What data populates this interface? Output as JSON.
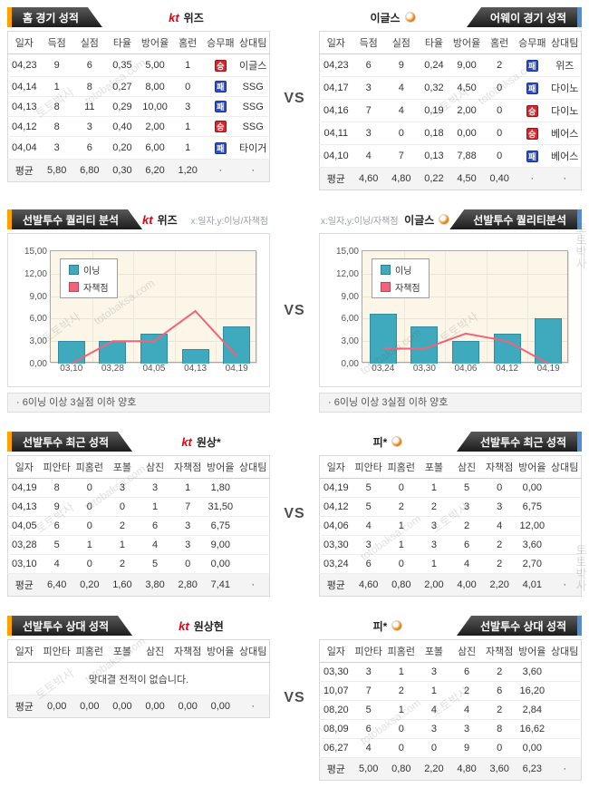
{
  "page": {
    "vs": "VS"
  },
  "watermark": {
    "kr": "토토박사",
    "en": "totobaksa.com"
  },
  "sections": {
    "s1": {
      "left": {
        "title": "홈 경기 성적",
        "team_logo": "kt",
        "team": "위즈",
        "columns": [
          "일자",
          "득점",
          "실점",
          "타율",
          "방어율",
          "홈런",
          "승무패",
          "상대팀"
        ],
        "badge_col": 6,
        "rows": [
          [
            "04,23",
            "9",
            "6",
            "0,35",
            "5,00",
            "1",
            "승",
            "이글스"
          ],
          [
            "04,14",
            "1",
            "8",
            "0,27",
            "8,00",
            "0",
            "패",
            "SSG"
          ],
          [
            "04,13",
            "8",
            "11",
            "0,29",
            "10,00",
            "3",
            "패",
            "SSG"
          ],
          [
            "04,12",
            "8",
            "3",
            "0,40",
            "2,00",
            "1",
            "승",
            "SSG"
          ],
          [
            "04,04",
            "3",
            "6",
            "0,20",
            "6,00",
            "1",
            "패",
            "타이거"
          ]
        ],
        "avg": [
          "평균",
          "5,80",
          "6,80",
          "0,30",
          "6,20",
          "1,20",
          "·",
          "·"
        ]
      },
      "right": {
        "title": "어웨이 경기 성적",
        "team": "이글스",
        "columns": [
          "일자",
          "득점",
          "실점",
          "타율",
          "방어율",
          "홈런",
          "승무패",
          "상대팀"
        ],
        "badge_col": 6,
        "rows": [
          [
            "04,23",
            "6",
            "9",
            "0,24",
            "9,00",
            "2",
            "패",
            "위즈"
          ],
          [
            "04,17",
            "3",
            "4",
            "0,32",
            "4,50",
            "0",
            "패",
            "다이노"
          ],
          [
            "04,16",
            "7",
            "4",
            "0,19",
            "2,00",
            "0",
            "승",
            "다이노"
          ],
          [
            "04,11",
            "3",
            "0",
            "0,18",
            "0,00",
            "0",
            "승",
            "베어스"
          ],
          [
            "04,10",
            "4",
            "7",
            "0,13",
            "7,88",
            "0",
            "패",
            "베어스"
          ]
        ],
        "avg": [
          "평균",
          "4,60",
          "4,80",
          "0,22",
          "4,50",
          "0,40",
          "·",
          "·"
        ]
      }
    },
    "s2": {
      "left": {
        "title": "선발투수 퀄리티 분석",
        "team_logo": "kt",
        "team": "위즈",
        "axis_note": "x:일자,y:이닝/자책점",
        "note": "·  6이닝 이상 3실점 이하 양호"
      },
      "right": {
        "title": "선발투수 퀄리티분석",
        "team": "이글스",
        "axis_note": "x:일자,y:이닝/자책점",
        "note": "·  6이닝 이상 3실점 이하 양호"
      }
    },
    "s3": {
      "left": {
        "title": "선발투수 최근 성적",
        "team_logo": "kt",
        "team": "원상*",
        "columns": [
          "일자",
          "피안타",
          "피홈런",
          "포볼",
          "삼진",
          "자책점",
          "방어율",
          "상대팀"
        ],
        "rows": [
          [
            "04,19",
            "8",
            "0",
            "3",
            "3",
            "1",
            "1,80",
            ""
          ],
          [
            "04,13",
            "9",
            "0",
            "0",
            "1",
            "7",
            "31,50",
            ""
          ],
          [
            "04,05",
            "6",
            "0",
            "2",
            "6",
            "3",
            "6,75",
            ""
          ],
          [
            "03,28",
            "5",
            "1",
            "1",
            "4",
            "3",
            "9,00",
            ""
          ],
          [
            "03,10",
            "4",
            "0",
            "2",
            "5",
            "0",
            "0,00",
            ""
          ]
        ],
        "avg": [
          "평균",
          "6,40",
          "0,20",
          "1,60",
          "3,80",
          "2,80",
          "7,41",
          "·"
        ]
      },
      "right": {
        "title": "선발투수 최근 성적",
        "team": "피*",
        "columns": [
          "일자",
          "피안타",
          "피홈런",
          "포볼",
          "삼진",
          "자책점",
          "방어율",
          "상대팀"
        ],
        "rows": [
          [
            "04,19",
            "5",
            "0",
            "1",
            "5",
            "0",
            "0,00",
            ""
          ],
          [
            "04,12",
            "5",
            "2",
            "2",
            "3",
            "3",
            "6,75",
            ""
          ],
          [
            "04,06",
            "4",
            "1",
            "3",
            "2",
            "4",
            "12,00",
            ""
          ],
          [
            "03,30",
            "3",
            "1",
            "3",
            "6",
            "2",
            "3,60",
            ""
          ],
          [
            "03,24",
            "6",
            "0",
            "1",
            "4",
            "2",
            "2,70",
            ""
          ]
        ],
        "avg": [
          "평균",
          "4,60",
          "0,80",
          "2,00",
          "4,00",
          "2,20",
          "4,01",
          "·"
        ]
      }
    },
    "s4": {
      "left": {
        "title": "선발투수 상대 성적",
        "team_logo": "kt",
        "team": "원상현",
        "columns": [
          "일자",
          "피안타",
          "피홈런",
          "포볼",
          "삼진",
          "자책점",
          "방어율",
          "상대팀"
        ],
        "message": "맞대결 전적이 없습니다.",
        "avg": [
          "평균",
          "0,00",
          "0,00",
          "0,00",
          "0,00",
          "0,00",
          "0,00",
          "·"
        ]
      },
      "right": {
        "title": "선발투수 상대 성적",
        "team": "피*",
        "columns": [
          "일자",
          "피안타",
          "피홈런",
          "포볼",
          "삼진",
          "자책점",
          "방어율",
          "상대팀"
        ],
        "rows": [
          [
            "03,30",
            "3",
            "1",
            "3",
            "6",
            "2",
            "3,60",
            ""
          ],
          [
            "10,07",
            "7",
            "2",
            "1",
            "2",
            "6",
            "16,20",
            ""
          ],
          [
            "08,20",
            "5",
            "1",
            "4",
            "4",
            "2",
            "2,84",
            ""
          ],
          [
            "08,09",
            "6",
            "0",
            "3",
            "3",
            "8",
            "16,62",
            ""
          ],
          [
            "06,27",
            "4",
            "0",
            "0",
            "9",
            "0",
            "0,00",
            ""
          ]
        ],
        "avg": [
          "평균",
          "5,00",
          "0,80",
          "2,20",
          "4,80",
          "3,60",
          "6,23",
          "·"
        ]
      }
    }
  },
  "chart_data": [
    {
      "type": "bar",
      "title": "선발투수 퀄리티 분석 (kt 위즈)",
      "xlabel": "일자",
      "ylabel": "이닝/자책점",
      "categories": [
        "03,10",
        "03,28",
        "04,05",
        "04,13",
        "04,19"
      ],
      "series": [
        {
          "name": "이닝",
          "type": "bar",
          "color": "#3fa9bd",
          "values": [
            3,
            3,
            4,
            2,
            5
          ]
        },
        {
          "name": "자책점",
          "type": "line",
          "color": "#f2637a",
          "values": [
            0,
            3,
            3,
            7,
            1
          ]
        }
      ],
      "ylim": [
        0,
        15
      ],
      "y_ticks": [
        0,
        3,
        6,
        9,
        12,
        15
      ],
      "y_tick_labels": [
        "0,00",
        "3,00",
        "6,00",
        "9,00",
        "12,00",
        "15,00"
      ],
      "grid": true,
      "legend_position": "top-left"
    },
    {
      "type": "bar",
      "title": "선발투수 퀄리티분석 (이글스)",
      "xlabel": "일자",
      "ylabel": "이닝/자책점",
      "categories": [
        "03,24",
        "03,30",
        "04,06",
        "04,12",
        "04,19"
      ],
      "series": [
        {
          "name": "이닝",
          "type": "bar",
          "color": "#3fa9bd",
          "values": [
            6.7,
            5,
            3,
            4,
            6
          ]
        },
        {
          "name": "자책점",
          "type": "line",
          "color": "#f2637a",
          "values": [
            2,
            2,
            4,
            3,
            0
          ]
        }
      ],
      "ylim": [
        0,
        15
      ],
      "y_ticks": [
        0,
        3,
        6,
        9,
        12,
        15
      ],
      "y_tick_labels": [
        "0,00",
        "3,00",
        "6,00",
        "9,00",
        "12,00",
        "15,00"
      ],
      "grid": true,
      "legend_position": "top-left"
    }
  ]
}
